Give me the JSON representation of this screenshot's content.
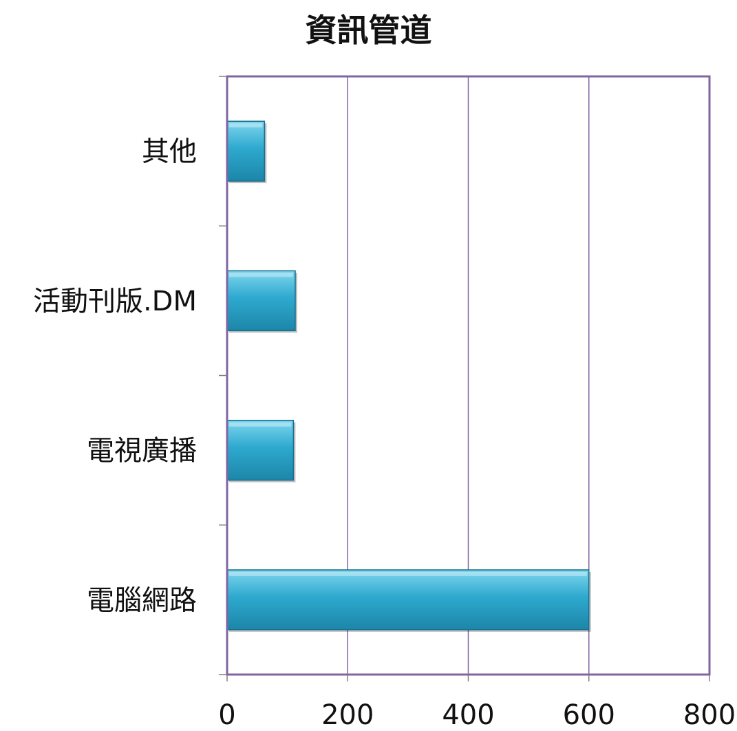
{
  "chart_data": {
    "type": "bar",
    "orientation": "horizontal",
    "title": "資訊管道",
    "categories": [
      "電腦網路",
      "電視廣播",
      "活動刊版.DM",
      "其他"
    ],
    "values": [
      600,
      110,
      113,
      62
    ],
    "xlim": [
      0,
      800
    ],
    "x_ticks": [
      "0",
      "200",
      "400",
      "600",
      "800"
    ],
    "grid": "vertical",
    "legend": "none",
    "colors": {
      "bar": "#2ea9cf",
      "bar_light": "#55c8e6",
      "bar_dark": "#1a7f9e",
      "frame": "#8064a2",
      "grid": "#8064a2"
    }
  }
}
